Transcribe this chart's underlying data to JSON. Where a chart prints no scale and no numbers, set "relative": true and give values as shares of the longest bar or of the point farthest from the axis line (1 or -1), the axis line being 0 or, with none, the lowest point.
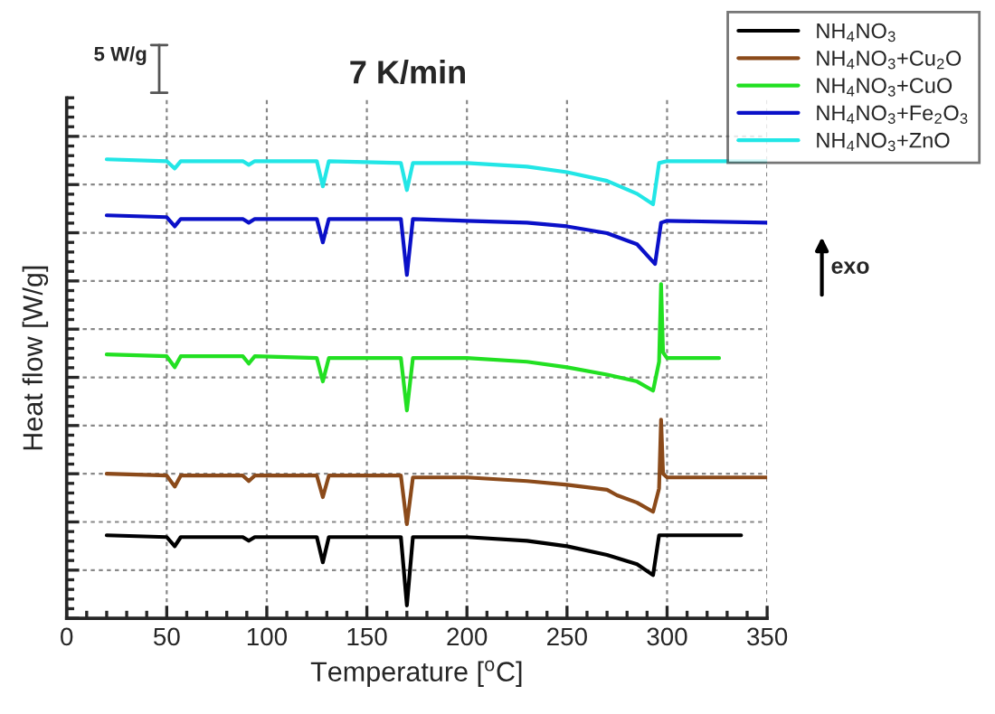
{
  "chart_data": {
    "type": "line",
    "title": "7 K/min",
    "xlabel": "Temperature [$^{o}$C]",
    "ylabel": "Heat flow [W/g]",
    "relative": true,
    "xlim": [
      0,
      350
    ],
    "xticks": [
      0,
      50,
      100,
      150,
      200,
      250,
      300,
      350
    ],
    "grid": true,
    "legend": "top right",
    "marker": "none",
    "line_style": "solid",
    "annotations": [
      "5 W/g",
      "exo"
    ],
    "series": [
      {
        "name": "NH$_{4}$NO$_{3}$",
        "color": "#000000",
        "x": [
          20,
          50,
          54,
          57,
          88,
          91,
          94,
          125,
          128,
          131,
          167,
          170,
          173,
          200,
          230,
          250,
          270,
          285,
          293,
          296,
          300,
          337
        ],
        "values": [
          0.181,
          0.177,
          0.157,
          0.177,
          0.177,
          0.169,
          0.177,
          0.177,
          0.122,
          0.177,
          0.177,
          0.028,
          0.177,
          0.177,
          0.169,
          0.157,
          0.138,
          0.118,
          0.094,
          0.181,
          0.181,
          0.181
        ]
      },
      {
        "name": "NH$_{4}$NO$_{3}$+Cu$_{2}$O",
        "color": "#8b4a1a",
        "x": [
          20,
          50,
          54,
          57,
          88,
          91,
          94,
          125,
          128,
          131,
          167,
          170,
          173,
          200,
          230,
          250,
          270,
          275,
          285,
          293,
          296,
          297,
          298,
          300,
          350
        ],
        "values": [
          0.315,
          0.311,
          0.287,
          0.311,
          0.311,
          0.299,
          0.311,
          0.311,
          0.264,
          0.311,
          0.311,
          0.205,
          0.307,
          0.307,
          0.299,
          0.291,
          0.28,
          0.268,
          0.252,
          0.232,
          0.283,
          0.433,
          0.315,
          0.307,
          0.307
        ]
      },
      {
        "name": "NH$_{4}$NO$_{3}$+CuO",
        "color": "#22e022",
        "x": [
          20,
          50,
          54,
          57,
          88,
          91,
          94,
          125,
          128,
          131,
          167,
          170,
          173,
          200,
          230,
          250,
          270,
          285,
          293,
          296,
          297,
          298,
          300,
          326
        ],
        "values": [
          0.575,
          0.571,
          0.547,
          0.571,
          0.571,
          0.555,
          0.571,
          0.567,
          0.516,
          0.567,
          0.567,
          0.453,
          0.567,
          0.567,
          0.559,
          0.547,
          0.531,
          0.516,
          0.496,
          0.559,
          0.728,
          0.579,
          0.567,
          0.567
        ]
      },
      {
        "name": "NH$_{4}$NO$_{3}$+Fe$_{2}$O$_{3}$",
        "color": "#0a10c8",
        "x": [
          20,
          50,
          54,
          57,
          88,
          91,
          94,
          125,
          128,
          131,
          167,
          170,
          173,
          200,
          230,
          250,
          270,
          285,
          294,
          297,
          300,
          350
        ],
        "values": [
          0.878,
          0.874,
          0.854,
          0.87,
          0.87,
          0.862,
          0.87,
          0.87,
          0.819,
          0.87,
          0.87,
          0.748,
          0.87,
          0.866,
          0.862,
          0.854,
          0.839,
          0.815,
          0.772,
          0.862,
          0.866,
          0.862
        ]
      },
      {
        "name": "NH$_{4}$NO$_{3}$+ZnO",
        "color": "#22e6e6",
        "x": [
          20,
          50,
          54,
          57,
          88,
          91,
          94,
          125,
          128,
          131,
          167,
          170,
          173,
          200,
          230,
          250,
          270,
          285,
          293,
          296,
          300,
          350
        ],
        "values": [
          1.0,
          0.996,
          0.98,
          0.996,
          0.996,
          0.988,
          0.996,
          0.996,
          0.941,
          0.996,
          0.992,
          0.933,
          0.992,
          0.992,
          0.984,
          0.972,
          0.953,
          0.925,
          0.902,
          0.992,
          0.996,
          0.996
        ]
      }
    ]
  }
}
